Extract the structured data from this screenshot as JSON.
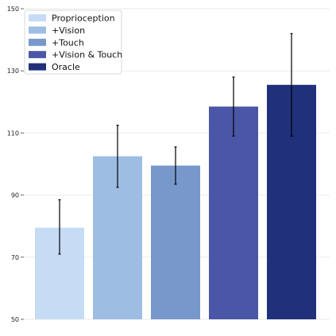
{
  "chart_data": {
    "type": "bar",
    "title": "",
    "xlabel": "",
    "ylabel": "",
    "ylim": [
      50,
      150
    ],
    "yticks": [
      50,
      70,
      90,
      110,
      130,
      150
    ],
    "grid": true,
    "legend_position": "top-left",
    "categories": [
      "Proprioception",
      "+Vision",
      "+Touch",
      "+Vision & Touch",
      "Oracle"
    ],
    "values": [
      79.5,
      102.5,
      99.5,
      118.5,
      125.5
    ],
    "error_low": [
      71,
      92.5,
      93.5,
      109,
      109
    ],
    "error_high": [
      88.5,
      112.5,
      105.5,
      128,
      142
    ],
    "colors": [
      "#c6dcf4",
      "#9dbde3",
      "#7898cc",
      "#4a56a6",
      "#20307a"
    ]
  }
}
